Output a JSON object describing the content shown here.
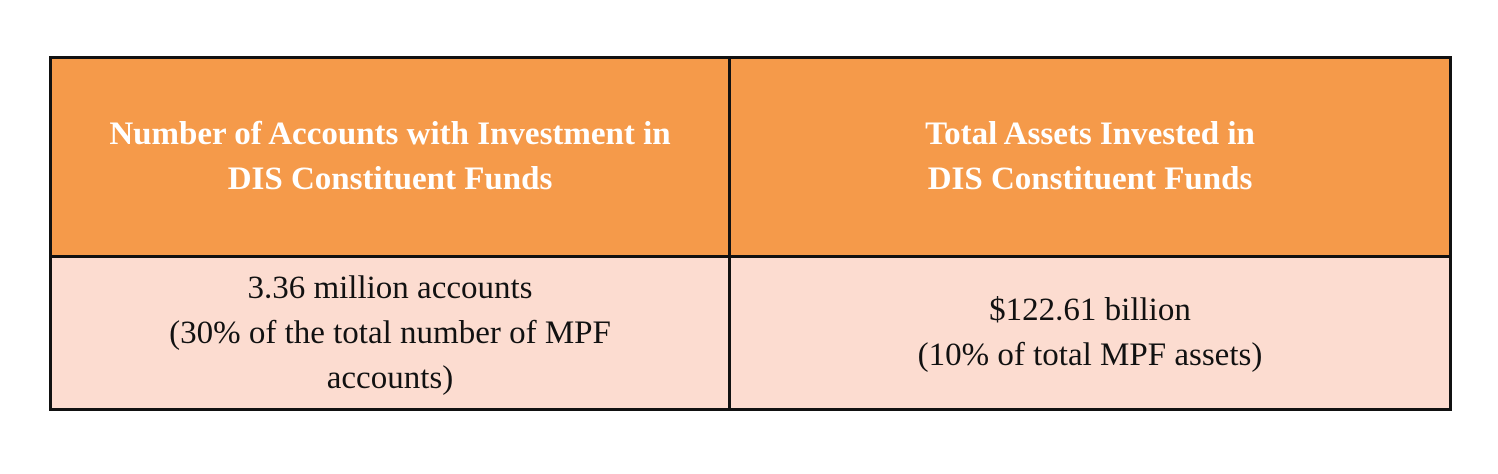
{
  "table": {
    "header": [
      {
        "line1": "Number of Accounts with Investment in",
        "line2": "DIS Constituent Funds"
      },
      {
        "line1": "Total Assets Invested in",
        "line2": "DIS Constituent Funds"
      }
    ],
    "row": [
      {
        "line1": "3.36 million accounts",
        "line2": "(30% of the total number of MPF",
        "line3": "accounts)"
      },
      {
        "line1": "$122.61 billion",
        "line2": "(10% of total MPF assets)"
      }
    ]
  },
  "colors": {
    "header_bg": "#f59a4a",
    "body_bg": "#fcdcd0",
    "border": "#111111"
  }
}
